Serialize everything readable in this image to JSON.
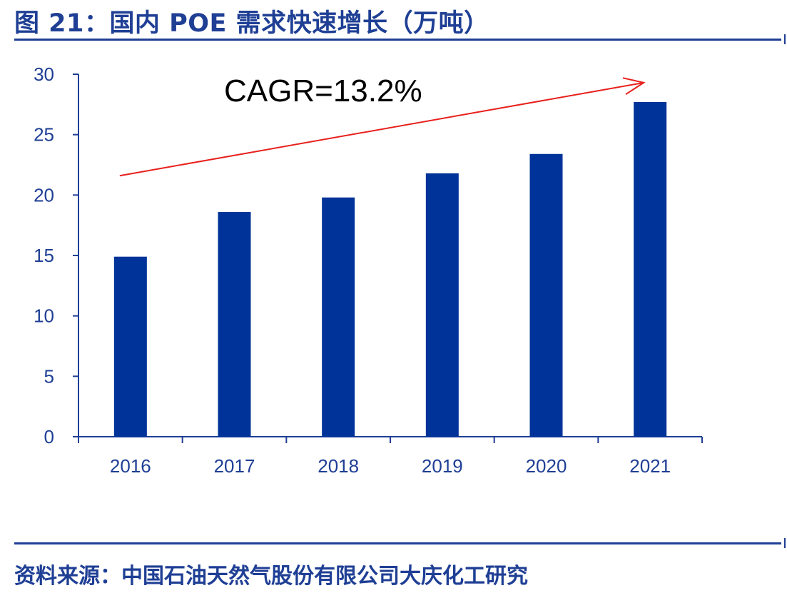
{
  "page": {
    "title": "图 21：国内 POE 需求快速增长（万吨）",
    "source": "资料来源：中国石油天然气股份有限公司大庆化工研究"
  },
  "colors": {
    "accent": "#1f3f95",
    "bar": "#003399",
    "trend": "#e8201c",
    "axis": "#1f3f95"
  },
  "chart_data": {
    "type": "bar",
    "categories": [
      "2016",
      "2017",
      "2018",
      "2019",
      "2020",
      "2021"
    ],
    "values": [
      14.9,
      18.6,
      19.8,
      21.8,
      23.4,
      27.7
    ],
    "title": "",
    "xlabel": "",
    "ylabel": "",
    "ylim": [
      0,
      30
    ],
    "yticks": [
      0,
      5,
      10,
      15,
      20,
      25,
      30
    ],
    "grid": false,
    "legend": "none",
    "annotations": [
      {
        "text": "CAGR=13.2%",
        "type": "trend-arrow",
        "from": {
          "x": "2016",
          "y": 21.6
        },
        "to": {
          "x": "2021",
          "y": 29.3
        }
      }
    ]
  }
}
